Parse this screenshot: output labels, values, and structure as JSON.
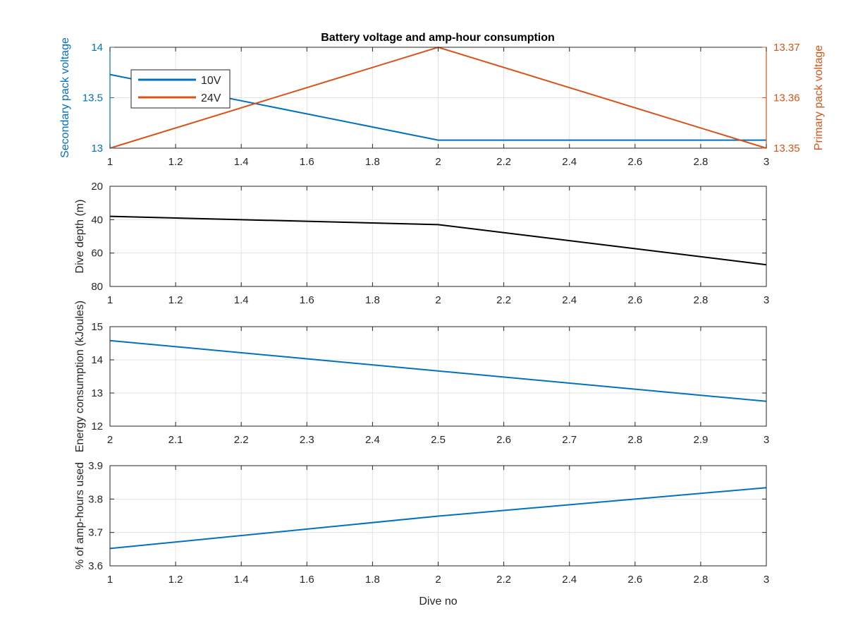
{
  "figure": {
    "title": "Battery voltage and amp-hour consumption"
  },
  "chart_data": [
    {
      "type": "line",
      "title": "Battery voltage and amp-hour consumption",
      "xlabel": "",
      "ylabel": "Secondary pack voltage",
      "ylabel_right": "Primary pack voltage",
      "xlim": [
        1,
        3
      ],
      "ylim": [
        13,
        14
      ],
      "ylim_right": [
        13.35,
        13.37
      ],
      "xticks": [
        1,
        1.2,
        1.4,
        1.6,
        1.8,
        2,
        2.2,
        2.4,
        2.6,
        2.8,
        3
      ],
      "xtick_labels": [
        "1",
        "1.2",
        "1.4",
        "1.6",
        "1.8",
        "2",
        "2.2",
        "2.4",
        "2.6",
        "2.8",
        "3"
      ],
      "yticks": [
        13,
        13.5,
        14
      ],
      "ytick_labels": [
        "13",
        "13.5",
        "14"
      ],
      "yticks_right": [
        13.35,
        13.36,
        13.37
      ],
      "ytick_labels_right": [
        "13.35",
        "13.36",
        "13.37"
      ],
      "grid": true,
      "legend": {
        "placement": "top-left",
        "entries": [
          "10V",
          "24V"
        ]
      },
      "series": [
        {
          "name": "10V",
          "axis": "left",
          "color": "#0072BD",
          "x": [
            1,
            2,
            3
          ],
          "y": [
            13.73,
            13.08,
            13.08
          ]
        },
        {
          "name": "24V",
          "axis": "right",
          "color": "#D95319",
          "x": [
            1,
            2,
            3
          ],
          "y": [
            13.35,
            13.37,
            13.35
          ]
        }
      ]
    },
    {
      "type": "line",
      "xlabel": "",
      "ylabel": "Dive depth (m)",
      "xlim": [
        1,
        3
      ],
      "ylim": [
        20,
        80
      ],
      "reversed_y": true,
      "xticks": [
        1,
        1.2,
        1.4,
        1.6,
        1.8,
        2,
        2.2,
        2.4,
        2.6,
        2.8,
        3
      ],
      "xtick_labels": [
        "1",
        "1.2",
        "1.4",
        "1.6",
        "1.8",
        "2",
        "2.2",
        "2.4",
        "2.6",
        "2.8",
        "3"
      ],
      "yticks": [
        20,
        40,
        60,
        80
      ],
      "ytick_labels": [
        "20",
        "40",
        "60",
        "80"
      ],
      "grid": true,
      "series": [
        {
          "color": "#000000",
          "x": [
            1,
            2,
            3
          ],
          "y": [
            38,
            43,
            67
          ]
        }
      ]
    },
    {
      "type": "line",
      "xlabel": "",
      "ylabel": "Energy consumption (kJoules)",
      "xlim": [
        2,
        3
      ],
      "ylim": [
        12,
        15
      ],
      "xticks": [
        2,
        2.1,
        2.2,
        2.3,
        2.4,
        2.5,
        2.6,
        2.7,
        2.8,
        2.9,
        3
      ],
      "xtick_labels": [
        "2",
        "2.1",
        "2.2",
        "2.3",
        "2.4",
        "2.5",
        "2.6",
        "2.7",
        "2.8",
        "2.9",
        "3"
      ],
      "yticks": [
        12,
        13,
        14,
        15
      ],
      "ytick_labels": [
        "12",
        "13",
        "14",
        "15"
      ],
      "grid": true,
      "series": [
        {
          "color": "#0072BD",
          "x": [
            2,
            3
          ],
          "y": [
            14.58,
            12.75
          ]
        }
      ]
    },
    {
      "type": "line",
      "xlabel": "Dive no",
      "ylabel": "% of amp-hours used",
      "xlim": [
        1,
        3
      ],
      "ylim": [
        3.6,
        3.9
      ],
      "xticks": [
        1,
        1.2,
        1.4,
        1.6,
        1.8,
        2,
        2.2,
        2.4,
        2.6,
        2.8,
        3
      ],
      "xtick_labels": [
        "1",
        "1.2",
        "1.4",
        "1.6",
        "1.8",
        "2",
        "2.2",
        "2.4",
        "2.6",
        "2.8",
        "3"
      ],
      "yticks": [
        3.6,
        3.7,
        3.8,
        3.9
      ],
      "ytick_labels": [
        "3.6",
        "3.7",
        "3.8",
        "3.9"
      ],
      "grid": true,
      "series": [
        {
          "color": "#0072BD",
          "x": [
            1,
            2,
            3
          ],
          "y": [
            3.652,
            3.749,
            3.834
          ]
        }
      ]
    }
  ]
}
